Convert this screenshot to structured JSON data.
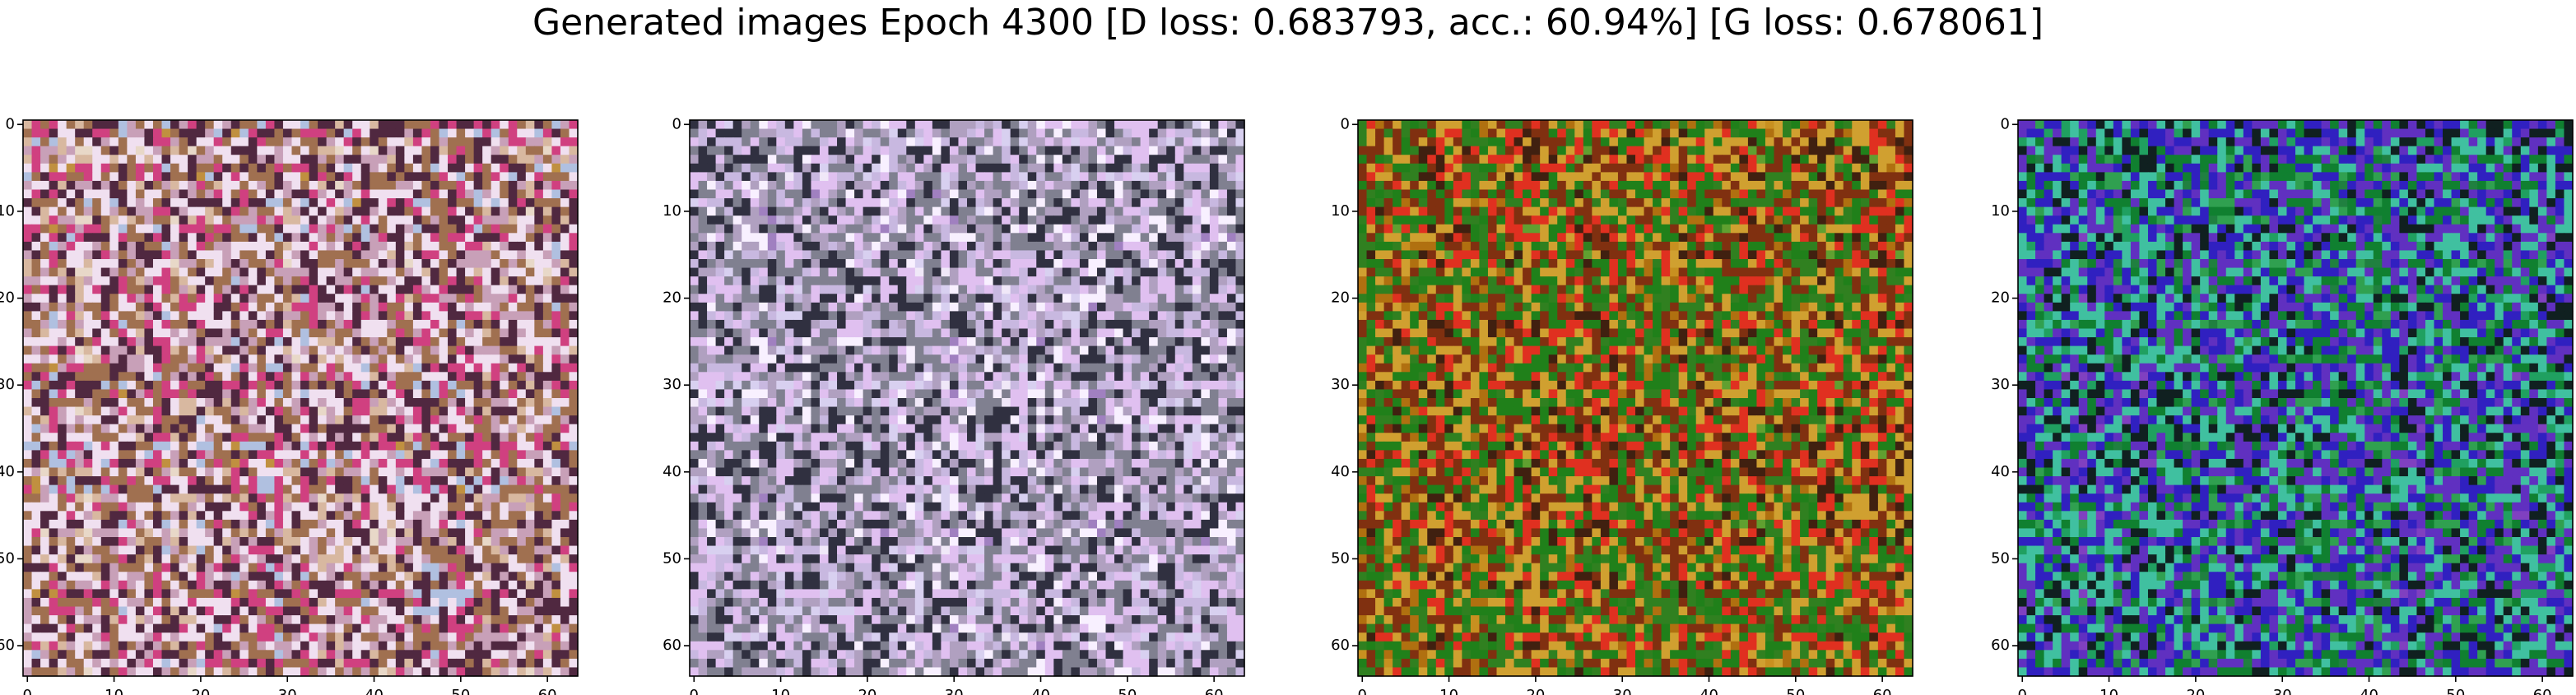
{
  "title": "Generated images Epoch 4300 [D loss: 0.683793, acc.: 60.94%] [G loss: 0.678061]",
  "chart_data": [
    {
      "type": "image",
      "xlim": [
        -0.5,
        63.5
      ],
      "ylim": [
        63.5,
        -0.5
      ],
      "xticks": [
        0,
        10,
        20,
        30,
        40,
        50,
        60
      ],
      "yticks": [
        0,
        10,
        20,
        30,
        40,
        50,
        60
      ],
      "colors": [
        "#e8d8c8",
        "#d8b8a0",
        "#c8a0b8",
        "#f0e0f0",
        "#a07050",
        "#502840",
        "#d04080",
        "#b0c0e0",
        "#c09040"
      ]
    },
    {
      "type": "image",
      "xlim": [
        -0.5,
        63.5
      ],
      "ylim": [
        63.5,
        -0.5
      ],
      "xticks": [
        0,
        10,
        20,
        30,
        40,
        50,
        60
      ],
      "yticks": [
        0,
        10,
        20,
        30,
        40,
        50,
        60
      ],
      "colors": [
        "#f0e8f8",
        "#d8d0f0",
        "#c8b8e0",
        "#e0c0f0",
        "#808090",
        "#303040",
        "#b0a0c0",
        "#f8f0ff",
        "#a080c0"
      ]
    },
    {
      "type": "image",
      "xlim": [
        -0.5,
        63.5
      ],
      "ylim": [
        63.5,
        -0.5
      ],
      "xticks": [
        0,
        10,
        20,
        30,
        40,
        50,
        60
      ],
      "yticks": [
        0,
        10,
        20,
        30,
        40,
        50,
        60
      ],
      "colors": [
        "#c89020",
        "#b07010",
        "#308020",
        "#20801a",
        "#803010",
        "#d0a030",
        "#e03020",
        "#402010",
        "#60a030"
      ]
    },
    {
      "type": "image",
      "xlim": [
        -0.5,
        63.5
      ],
      "ylim": [
        63.5,
        -0.5
      ],
      "xticks": [
        0,
        10,
        20,
        30,
        40,
        50,
        60
      ],
      "yticks": [
        0,
        10,
        20,
        30,
        40,
        50,
        60
      ],
      "colors": [
        "#208040",
        "#30a050",
        "#108030",
        "#3020c0",
        "#6030c0",
        "#40c0a0",
        "#102020",
        "#20a060",
        "#8040c0"
      ]
    }
  ]
}
